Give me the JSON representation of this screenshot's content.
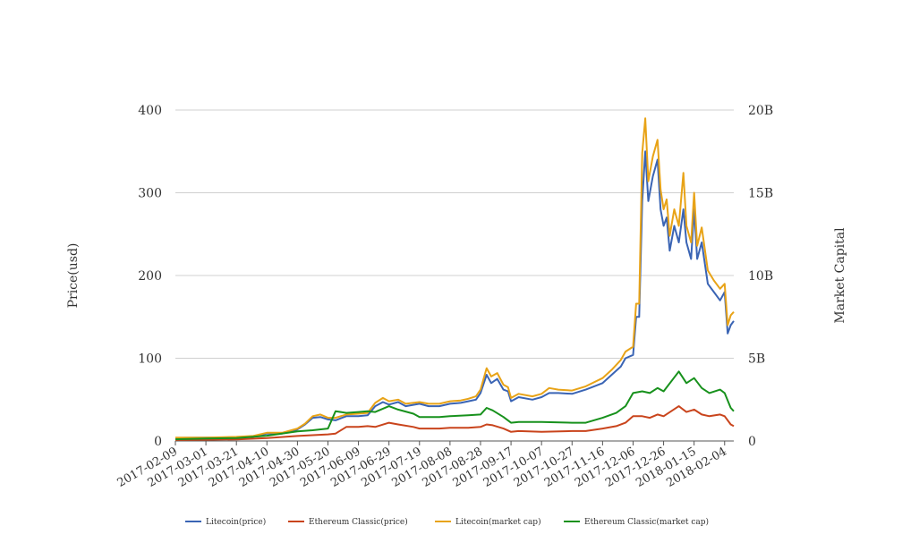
{
  "chart_data": {
    "type": "line",
    "title": "",
    "ylabel_left": "Price(usd)",
    "ylabel_right": "Market Capital",
    "ylim_left": [
      0,
      400
    ],
    "ylim_right": [
      0,
      20000000000
    ],
    "yticks_left": [
      "0",
      "100",
      "200",
      "300",
      "400"
    ],
    "yticks_right": [
      "0",
      "5B",
      "10B",
      "15B",
      "20B"
    ],
    "x_ticks": [
      "2017-02-09",
      "2017-03-01",
      "2017-03-21",
      "2017-04-10",
      "2017-04-30",
      "2017-05-20",
      "2017-06-09",
      "2017-06-29",
      "2017-07-19",
      "2017-08-08",
      "2017-08-28",
      "2017-09-17",
      "2017-10-07",
      "2017-10-27",
      "2017-11-16",
      "2017-12-06",
      "2017-12-26",
      "2018-01-15",
      "2018-02-04"
    ],
    "x_range": [
      "2017-02-09",
      "2018-02-10"
    ],
    "grid": true,
    "legend_position": "bottom",
    "colors": {
      "litecoin_price": "#3a64b4",
      "etc_price": "#c9441c",
      "litecoin_cap": "#e8a317",
      "etc_cap": "#17911c"
    },
    "series": [
      {
        "name": "Litecoin(price)",
        "axis": "left",
        "color": "#3a64b4",
        "x": [
          "2017-02-09",
          "2017-03-01",
          "2017-03-21",
          "2017-04-01",
          "2017-04-10",
          "2017-04-20",
          "2017-04-30",
          "2017-05-05",
          "2017-05-10",
          "2017-05-15",
          "2017-05-20",
          "2017-05-25",
          "2017-06-01",
          "2017-06-09",
          "2017-06-15",
          "2017-06-20",
          "2017-06-25",
          "2017-06-29",
          "2017-07-05",
          "2017-07-10",
          "2017-07-19",
          "2017-07-25",
          "2017-08-01",
          "2017-08-08",
          "2017-08-15",
          "2017-08-20",
          "2017-08-25",
          "2017-08-28",
          "2017-09-01",
          "2017-09-04",
          "2017-09-08",
          "2017-09-12",
          "2017-09-15",
          "2017-09-17",
          "2017-09-22",
          "2017-10-01",
          "2017-10-07",
          "2017-10-12",
          "2017-10-18",
          "2017-10-27",
          "2017-11-05",
          "2017-11-16",
          "2017-11-22",
          "2017-11-28",
          "2017-12-01",
          "2017-12-06",
          "2017-12-08",
          "2017-12-10",
          "2017-12-12",
          "2017-12-14",
          "2017-12-16",
          "2017-12-19",
          "2017-12-22",
          "2017-12-24",
          "2017-12-26",
          "2017-12-28",
          "2017-12-30",
          "2018-01-02",
          "2018-01-05",
          "2018-01-08",
          "2018-01-10",
          "2018-01-13",
          "2018-01-15",
          "2018-01-17",
          "2018-01-20",
          "2018-01-24",
          "2018-01-28",
          "2018-02-01",
          "2018-02-04",
          "2018-02-06",
          "2018-02-08",
          "2018-02-10"
        ],
        "values": [
          3.8,
          4,
          4,
          5,
          9,
          9,
          14,
          20,
          28,
          29,
          26,
          25,
          30,
          30,
          31,
          42,
          47,
          44,
          47,
          42,
          45,
          42,
          42,
          45,
          46,
          48,
          50,
          58,
          80,
          70,
          75,
          62,
          60,
          48,
          53,
          50,
          53,
          58,
          58,
          57,
          62,
          70,
          80,
          90,
          100,
          104,
          150,
          150,
          290,
          350,
          290,
          320,
          340,
          280,
          260,
          270,
          230,
          260,
          240,
          280,
          240,
          220,
          280,
          220,
          240,
          190,
          180,
          170,
          180,
          130,
          140,
          145
        ]
      },
      {
        "name": "Ethereum Classic(price)",
        "axis": "left",
        "color": "#c9441c",
        "x": [
          "2017-02-09",
          "2017-03-01",
          "2017-03-21",
          "2017-04-10",
          "2017-04-30",
          "2017-05-10",
          "2017-05-20",
          "2017-05-25",
          "2017-06-01",
          "2017-06-09",
          "2017-06-15",
          "2017-06-20",
          "2017-06-29",
          "2017-07-05",
          "2017-07-15",
          "2017-07-19",
          "2017-08-01",
          "2017-08-08",
          "2017-08-20",
          "2017-08-28",
          "2017-09-01",
          "2017-09-05",
          "2017-09-12",
          "2017-09-17",
          "2017-09-22",
          "2017-10-07",
          "2017-10-27",
          "2017-11-05",
          "2017-11-16",
          "2017-11-25",
          "2017-12-01",
          "2017-12-06",
          "2017-12-12",
          "2017-12-17",
          "2017-12-22",
          "2017-12-26",
          "2018-01-05",
          "2018-01-10",
          "2018-01-15",
          "2018-01-20",
          "2018-01-25",
          "2018-02-01",
          "2018-02-04",
          "2018-02-08",
          "2018-02-10"
        ],
        "values": [
          1.2,
          1.5,
          1.9,
          3.5,
          6,
          7,
          8,
          9,
          17,
          17,
          18,
          17,
          22,
          20,
          17,
          15,
          15,
          16,
          16,
          17,
          20,
          19,
          15,
          11,
          12,
          11,
          12,
          12,
          15,
          18,
          22,
          30,
          30,
          28,
          32,
          30,
          42,
          35,
          38,
          32,
          30,
          32,
          30,
          20,
          18
        ]
      },
      {
        "name": "Litecoin(market cap)",
        "axis": "right",
        "color": "#e8a317",
        "x": [
          "2017-02-09",
          "2017-03-01",
          "2017-03-21",
          "2017-04-01",
          "2017-04-10",
          "2017-04-20",
          "2017-04-30",
          "2017-05-05",
          "2017-05-10",
          "2017-05-15",
          "2017-05-20",
          "2017-05-25",
          "2017-06-01",
          "2017-06-09",
          "2017-06-15",
          "2017-06-20",
          "2017-06-25",
          "2017-06-29",
          "2017-07-05",
          "2017-07-10",
          "2017-07-19",
          "2017-07-25",
          "2017-08-01",
          "2017-08-08",
          "2017-08-15",
          "2017-08-20",
          "2017-08-25",
          "2017-08-28",
          "2017-09-01",
          "2017-09-04",
          "2017-09-08",
          "2017-09-12",
          "2017-09-15",
          "2017-09-17",
          "2017-09-22",
          "2017-10-01",
          "2017-10-07",
          "2017-10-12",
          "2017-10-18",
          "2017-10-27",
          "2017-11-05",
          "2017-11-16",
          "2017-11-22",
          "2017-11-28",
          "2017-12-01",
          "2017-12-06",
          "2017-12-08",
          "2017-12-10",
          "2017-12-12",
          "2017-12-14",
          "2017-12-16",
          "2017-12-19",
          "2017-12-22",
          "2017-12-24",
          "2017-12-26",
          "2017-12-28",
          "2017-12-30",
          "2018-01-02",
          "2018-01-05",
          "2018-01-08",
          "2018-01-10",
          "2018-01-13",
          "2018-01-15",
          "2018-01-17",
          "2018-01-20",
          "2018-01-24",
          "2018-01-28",
          "2018-02-01",
          "2018-02-04",
          "2018-02-06",
          "2018-02-08",
          "2018-02-10"
        ],
        "values": [
          200000000,
          200000000,
          250000000,
          300000000,
          500000000,
          500000000,
          750000000,
          1050000000,
          1500000000,
          1600000000,
          1400000000,
          1400000000,
          1600000000,
          1650000000,
          1700000000,
          2300000000,
          2600000000,
          2400000000,
          2500000000,
          2250000000,
          2350000000,
          2250000000,
          2250000000,
          2400000000,
          2450000000,
          2550000000,
          2700000000,
          3100000000,
          4400000000,
          3900000000,
          4100000000,
          3400000000,
          3250000000,
          2600000000,
          2850000000,
          2700000000,
          2850000000,
          3200000000,
          3100000000,
          3050000000,
          3300000000,
          3800000000,
          4300000000,
          4900000000,
          5400000000,
          5700000000,
          8300000000,
          8300000000,
          17400000000,
          19500000000,
          15700000000,
          17200000000,
          18200000000,
          15200000000,
          14000000000,
          14600000000,
          12400000000,
          14000000000,
          13000000000,
          16200000000,
          13000000000,
          12000000000,
          15000000000,
          11800000000,
          12900000000,
          10300000000,
          9700000000,
          9200000000,
          9500000000,
          7000000000,
          7600000000,
          7800000000
        ]
      },
      {
        "name": "Ethereum Classic(market cap)",
        "axis": "right",
        "color": "#17911c",
        "x": [
          "2017-02-09",
          "2017-03-01",
          "2017-03-21",
          "2017-04-10",
          "2017-04-30",
          "2017-05-10",
          "2017-05-20",
          "2017-05-25",
          "2017-06-01",
          "2017-06-09",
          "2017-06-15",
          "2017-06-20",
          "2017-06-29",
          "2017-07-05",
          "2017-07-15",
          "2017-07-19",
          "2017-08-01",
          "2017-08-08",
          "2017-08-20",
          "2017-08-28",
          "2017-09-01",
          "2017-09-05",
          "2017-09-12",
          "2017-09-17",
          "2017-09-22",
          "2017-10-07",
          "2017-10-27",
          "2017-11-05",
          "2017-11-16",
          "2017-11-25",
          "2017-12-01",
          "2017-12-06",
          "2017-12-12",
          "2017-12-17",
          "2017-12-22",
          "2017-12-26",
          "2018-01-05",
          "2018-01-10",
          "2018-01-15",
          "2018-01-20",
          "2018-01-25",
          "2018-02-01",
          "2018-02-04",
          "2018-02-08",
          "2018-02-10"
        ],
        "values": [
          100000000,
          150000000,
          180000000,
          320000000,
          580000000,
          650000000,
          750000000,
          1800000000,
          1700000000,
          1750000000,
          1800000000,
          1750000000,
          2100000000,
          1900000000,
          1650000000,
          1450000000,
          1450000000,
          1500000000,
          1550000000,
          1600000000,
          2000000000,
          1850000000,
          1450000000,
          1100000000,
          1150000000,
          1150000000,
          1100000000,
          1100000000,
          1400000000,
          1700000000,
          2100000000,
          2900000000,
          3000000000,
          2900000000,
          3200000000,
          3000000000,
          4200000000,
          3500000000,
          3800000000,
          3200000000,
          2900000000,
          3100000000,
          2900000000,
          2000000000,
          1800000000
        ]
      }
    ]
  }
}
